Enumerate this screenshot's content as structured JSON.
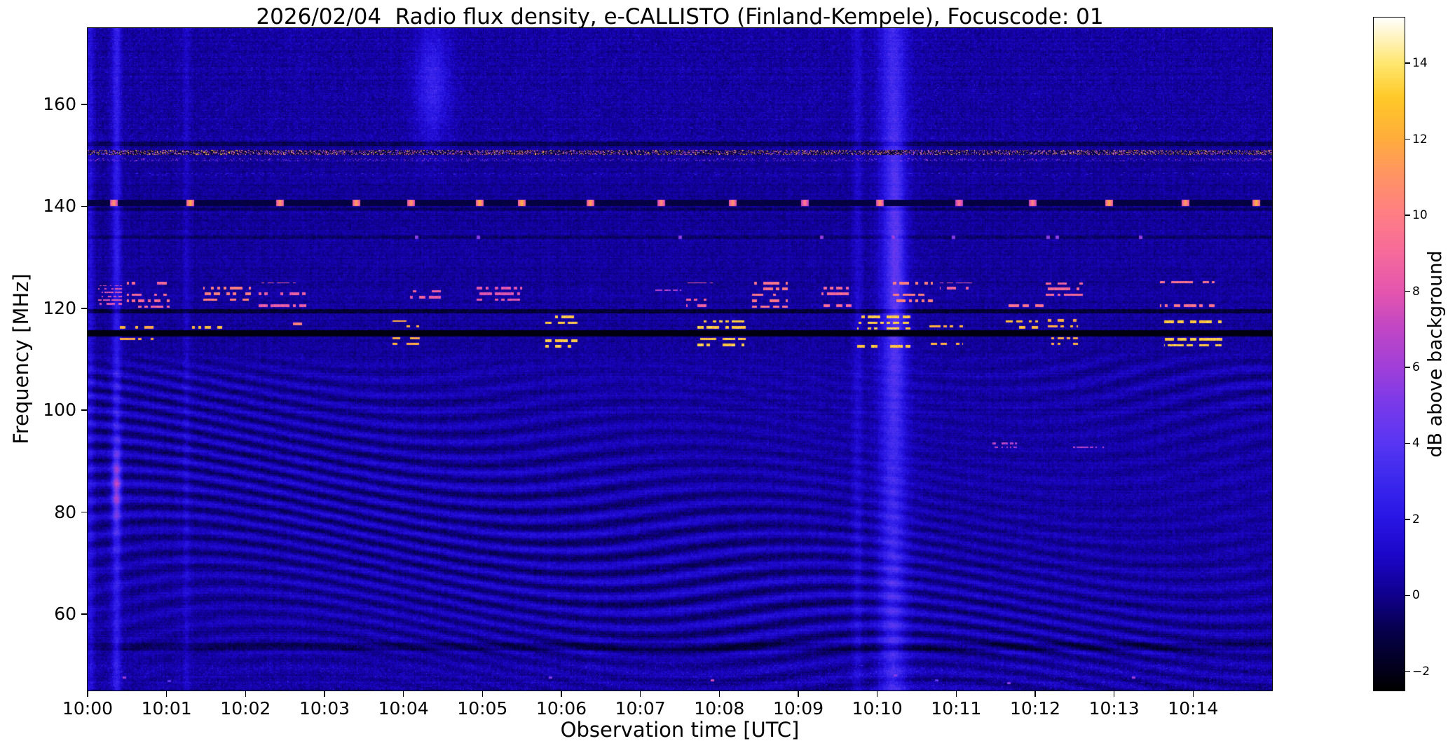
{
  "chart_data": {
    "type": "heatmap",
    "title": "2026/02/04  Radio flux density, e-CALLISTO (Finland-Kempele), Focuscode: 01",
    "xlabel": "Observation time [UTC]",
    "ylabel": "Frequency [MHz]",
    "colorbar_label": "dB above background",
    "x_ticks": [
      "10:00",
      "10:01",
      "10:02",
      "10:03",
      "10:04",
      "10:05",
      "10:06",
      "10:07",
      "10:08",
      "10:09",
      "10:10",
      "10:11",
      "10:12",
      "10:13",
      "10:14"
    ],
    "x_tick_interval_s": 60,
    "x_range_seconds": [
      0,
      900
    ],
    "y_ticks": [
      60,
      80,
      100,
      120,
      140,
      160
    ],
    "y_range_mhz": [
      45,
      175
    ],
    "value_range_db": [
      -2.5,
      15.2
    ],
    "colorbar_ticks": [
      14,
      12,
      10,
      8,
      6,
      4,
      2,
      0,
      -2
    ],
    "grid": false,
    "legend": "colorbar-right",
    "colormap": {
      "name": "gnuplot2-like",
      "stops": [
        [
          0.0,
          "#000000"
        ],
        [
          0.09,
          "#06004e"
        ],
        [
          0.14,
          "#10008c"
        ],
        [
          0.2,
          "#1b06c8"
        ],
        [
          0.26,
          "#2a17e6"
        ],
        [
          0.32,
          "#3f2bee"
        ],
        [
          0.37,
          "#5a36f2"
        ],
        [
          0.43,
          "#7c3ae8"
        ],
        [
          0.48,
          "#a13fd8"
        ],
        [
          0.54,
          "#c247c4"
        ],
        [
          0.59,
          "#e355ae"
        ],
        [
          0.65,
          "#f66a9b"
        ],
        [
          0.71,
          "#ff7f83"
        ],
        [
          0.77,
          "#ff9660"
        ],
        [
          0.82,
          "#ffad3c"
        ],
        [
          0.88,
          "#ffc928"
        ],
        [
          0.93,
          "#ffe66e"
        ],
        [
          1.0,
          "#ffffff"
        ]
      ]
    },
    "background_db": {
      "mean": 0.2,
      "noise_amplitude": 0.8
    },
    "features": {
      "fringes": {
        "f_max": 112.5,
        "amplitude_db": 1.05,
        "description": "wavy ionospheric interference fringes below ~112 MHz"
      },
      "top_noise_band": {
        "f_min": 152.5,
        "extra_db": 0.55
      },
      "bottom_noise_band": {
        "f_max": 50.5,
        "extra_db": 0.7
      },
      "rfi_lines": [
        {
          "f": 115.1,
          "halfwidth": 0.5,
          "type": "absorption",
          "level_db": -2.3
        },
        {
          "f": 119.4,
          "halfwidth": 0.3,
          "type": "dark",
          "delta_db": -1.6
        },
        {
          "f": 139.4,
          "halfwidth": 0.25,
          "type": "dark",
          "delta_db": -1.0
        },
        {
          "f": 152.3,
          "halfwidth": 0.3,
          "type": "dark",
          "delta_db": -1.0
        },
        {
          "f": 53.6,
          "halfwidth": 0.7,
          "type": "dark",
          "delta_db": -0.9
        },
        {
          "f": 150.6,
          "halfwidth": 0.45,
          "type": "speckle",
          "peak_db": 14.5
        },
        {
          "f": 149.1,
          "halfwidth": 0.2,
          "type": "speckle_sparse",
          "peak_db": 8
        },
        {
          "f": 146.4,
          "halfwidth": 0.2,
          "type": "dotted_faint",
          "peak_db": 4.5
        },
        {
          "f": 140.7,
          "halfwidth": 0.55,
          "type": "beacon",
          "base_db": -1.4,
          "peak_db": 13.5,
          "times_s": [
            20,
            78,
            146,
            204,
            246,
            298,
            330,
            382,
            436,
            490,
            545,
            602,
            662,
            718,
            776,
            834,
            888
          ]
        },
        {
          "f": 133.9,
          "halfwidth": 0.3,
          "type": "dots",
          "delta_db": -0.7,
          "peak_db": 6.5,
          "times_s": [
            250,
            297,
            450,
            558,
            612,
            658,
            730,
            737,
            800
          ]
        }
      ],
      "burst_clusters": [
        {
          "t": [
            25,
            50
          ],
          "f": [
            112.3,
            118.0
          ],
          "peak_db": 13.0,
          "style": "dash"
        },
        {
          "t": [
            78,
            102
          ],
          "f": [
            112.3,
            118.5
          ],
          "peak_db": 13.5,
          "style": "dash"
        },
        {
          "t": [
            150,
            166
          ],
          "f": [
            113.0,
            117.5
          ],
          "peak_db": 11.0,
          "style": "dash"
        },
        {
          "t": [
            232,
            252
          ],
          "f": [
            112.5,
            117.5
          ],
          "peak_db": 13.0,
          "style": "dash"
        },
        {
          "t": [
            348,
            372
          ],
          "f": [
            112.0,
            118.5
          ],
          "peak_db": 14.0,
          "style": "dash"
        },
        {
          "t": [
            462,
            500
          ],
          "f": [
            112.3,
            118.0
          ],
          "peak_db": 14.0,
          "style": "dash"
        },
        {
          "t": [
            585,
            625
          ],
          "f": [
            112.0,
            118.5
          ],
          "peak_db": 14.0,
          "style": "dash"
        },
        {
          "t": [
            640,
            665
          ],
          "f": [
            112.5,
            118.0
          ],
          "peak_db": 13.0,
          "style": "dash"
        },
        {
          "t": [
            698,
            722
          ],
          "f": [
            112.3,
            118.2
          ],
          "peak_db": 13.5,
          "style": "dash"
        },
        {
          "t": [
            730,
            752
          ],
          "f": [
            112.5,
            118.0
          ],
          "peak_db": 13.0,
          "style": "dash"
        },
        {
          "t": [
            818,
            862
          ],
          "f": [
            112.2,
            118.3
          ],
          "peak_db": 14.0,
          "style": "dash"
        },
        {
          "t": [
            8,
            26
          ],
          "f": [
            120.5,
            124.5
          ],
          "peak_db": 9.0,
          "style": "dots"
        },
        {
          "t": [
            30,
            62
          ],
          "f": [
            119.8,
            125.5
          ],
          "peak_db": 10.0,
          "style": "dash"
        },
        {
          "t": [
            88,
            124
          ],
          "f": [
            120.0,
            126.0
          ],
          "peak_db": 11.0,
          "style": "dash"
        },
        {
          "t": [
            130,
            166
          ],
          "f": [
            120.0,
            125.0
          ],
          "peak_db": 9.5,
          "style": "dash"
        },
        {
          "t": [
            245,
            268
          ],
          "f": [
            120.5,
            125.0
          ],
          "peak_db": 9.5,
          "style": "dash"
        },
        {
          "t": [
            296,
            330
          ],
          "f": [
            120.0,
            124.5
          ],
          "peak_db": 9.0,
          "style": "dash"
        },
        {
          "t": [
            368,
            420
          ],
          "f": [
            123.4,
            124.8
          ],
          "peak_db": 8.0,
          "style": "dots"
        },
        {
          "t": [
            430,
            452
          ],
          "f": [
            123.2,
            124.6
          ],
          "peak_db": 7.5,
          "style": "dots"
        },
        {
          "t": [
            455,
            475
          ],
          "f": [
            120.0,
            125.0
          ],
          "peak_db": 9.5,
          "style": "dash"
        },
        {
          "t": [
            505,
            532
          ],
          "f": [
            119.8,
            125.2
          ],
          "peak_db": 10.5,
          "style": "dash"
        },
        {
          "t": [
            558,
            580
          ],
          "f": [
            120.0,
            124.8
          ],
          "peak_db": 10.0,
          "style": "dash"
        },
        {
          "t": [
            612,
            642
          ],
          "f": [
            119.8,
            126.0
          ],
          "peak_db": 11.0,
          "style": "dash"
        },
        {
          "t": [
            648,
            672
          ],
          "f": [
            120.0,
            125.0
          ],
          "peak_db": 9.5,
          "style": "dash"
        },
        {
          "t": [
            700,
            726
          ],
          "f": [
            120.0,
            125.5
          ],
          "peak_db": 10.5,
          "style": "dash"
        },
        {
          "t": [
            728,
            756
          ],
          "f": [
            119.8,
            125.0
          ],
          "peak_db": 10.0,
          "style": "dash"
        },
        {
          "t": [
            815,
            856
          ],
          "f": [
            120.0,
            125.5
          ],
          "peak_db": 10.5,
          "style": "dash"
        },
        {
          "t": [
            688,
            706
          ],
          "f": [
            92.4,
            94.0
          ],
          "peak_db": 7.5,
          "style": "dots"
        },
        {
          "t": [
            748,
            772
          ],
          "f": [
            92.4,
            94.0
          ],
          "peak_db": 7.5,
          "style": "dots"
        }
      ],
      "vertical_events": [
        {
          "t_s": 2,
          "sigma_s": 2,
          "amp_db": 1.3
        },
        {
          "t_s": 22,
          "sigma_s": 2.5,
          "amp_db": 2.0
        },
        {
          "t_s": 22,
          "sigma_s": 2.5,
          "amp_db": 3.5,
          "f_center": 85,
          "f_sigma": 5
        },
        {
          "t_s": 75,
          "sigma_s": 2,
          "amp_db": 0.7
        },
        {
          "t_s": 262,
          "sigma_s": 9,
          "amp_db": 2.3,
          "f_center": 164,
          "f_sigma": 8
        },
        {
          "t_s": 585,
          "sigma_s": 3,
          "amp_db": 0.9
        },
        {
          "t_s": 612,
          "sigma_s": 7,
          "amp_db": 2.6
        },
        {
          "t_s": 615,
          "sigma_s": 4,
          "amp_db": 1.6,
          "f_center": 128,
          "f_sigma": 18
        }
      ],
      "bottom_dots": [
        {
          "t_s": 28,
          "f": 47.5,
          "db": 7
        },
        {
          "t_s": 62,
          "f": 46.8,
          "db": 5
        },
        {
          "t_s": 352,
          "f": 47.5,
          "db": 6
        },
        {
          "t_s": 475,
          "f": 47.0,
          "db": 8
        },
        {
          "t_s": 614,
          "f": 48.0,
          "db": 6
        },
        {
          "t_s": 645,
          "f": 47.0,
          "db": 5
        },
        {
          "t_s": 700,
          "f": 46.5,
          "db": 6
        },
        {
          "t_s": 795,
          "f": 47.5,
          "db": 7
        }
      ]
    }
  }
}
